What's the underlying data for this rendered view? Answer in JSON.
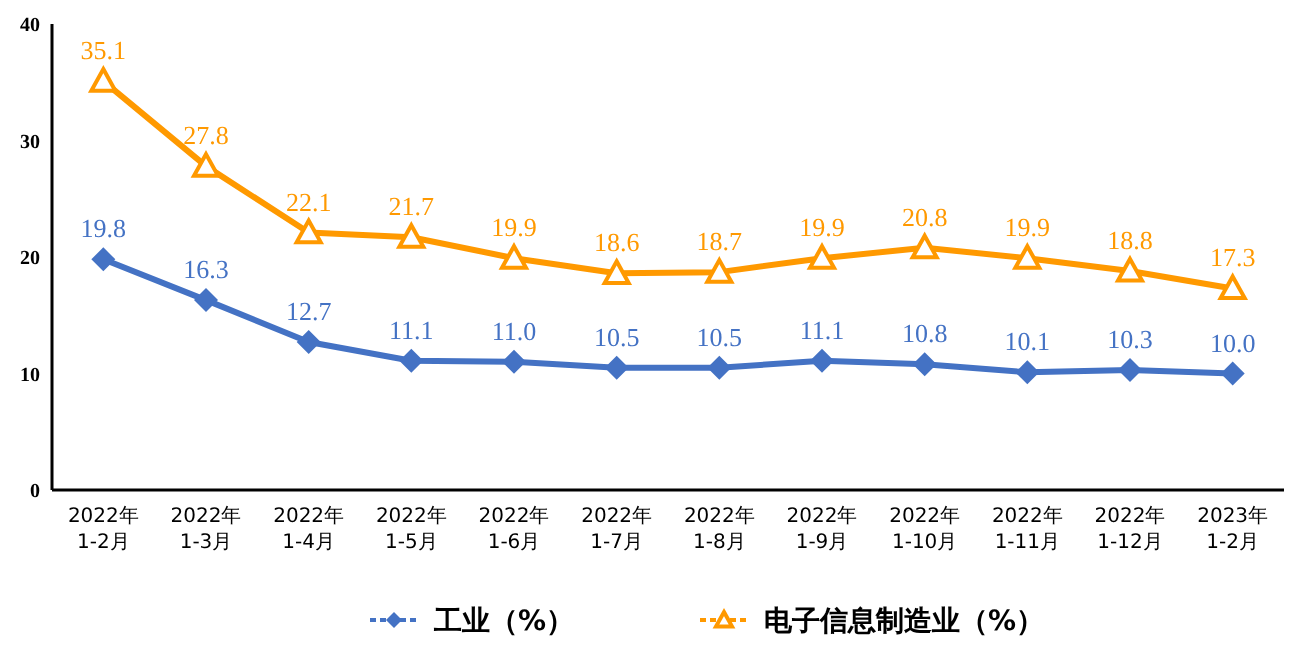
{
  "chart_data": {
    "type": "line",
    "categories": [
      "2022年\n1-2月",
      "2022年\n1-3月",
      "2022年\n1-4月",
      "2022年\n1-5月",
      "2022年\n1-6月",
      "2022年\n1-7月",
      "2022年\n1-8月",
      "2022年\n1-9月",
      "2022年\n1-10月",
      "2022年\n1-11月",
      "2022年\n1-12月",
      "2023年\n1-2月"
    ],
    "series": [
      {
        "name": "工业（%）",
        "color": "#4472c4",
        "marker": "diamond",
        "values": [
          19.8,
          16.3,
          12.7,
          11.1,
          11.0,
          10.5,
          10.5,
          11.1,
          10.8,
          10.1,
          10.3,
          10.0
        ],
        "value_labels": [
          "19.8",
          "16.3",
          "12.7",
          "11.1",
          "11.0",
          "10.5",
          "10.5",
          "11.1",
          "10.8",
          "10.1",
          "10.3",
          "10.0"
        ]
      },
      {
        "name": "电子信息制造业（%）",
        "color": "#ff9900",
        "marker": "triangle",
        "values": [
          35.1,
          27.8,
          22.1,
          21.7,
          19.9,
          18.6,
          18.7,
          19.9,
          20.8,
          19.9,
          18.8,
          17.3
        ],
        "value_labels": [
          "35.1",
          "27.8",
          "22.1",
          "21.7",
          "19.9",
          "18.6",
          "18.7",
          "19.9",
          "20.8",
          "19.9",
          "18.8",
          "17.3"
        ]
      }
    ],
    "ylim": [
      0,
      40
    ],
    "yticks": [
      0,
      10,
      20,
      30,
      40
    ],
    "legend": "bottom"
  }
}
